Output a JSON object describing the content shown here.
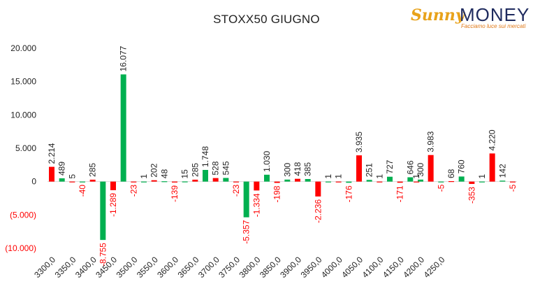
{
  "title": "STOXX50 GIUGNO",
  "logo": {
    "brand_a": "Sunny",
    "brand_b": "MONEY",
    "tagline": "Facciamo luce sui mercati",
    "color_a": "#e8a21a",
    "color_b": "#1e2a5e"
  },
  "colors": {
    "positive": "#00b050",
    "negative": "#ff0000"
  },
  "chart_data": {
    "type": "bar",
    "title": "STOXX50 GIUGNO",
    "xlabel": "",
    "ylabel": "",
    "ylim": [
      -10000,
      20000
    ],
    "yticks": [
      {
        "value": 20000,
        "label": "20.000"
      },
      {
        "value": 15000,
        "label": "15.000"
      },
      {
        "value": 10000,
        "label": "10.000"
      },
      {
        "value": 5000,
        "label": "5.000"
      },
      {
        "value": 0,
        "label": "0"
      },
      {
        "value": -5000,
        "label": "(5.000)"
      },
      {
        "value": -10000,
        "label": "(10.000)"
      }
    ],
    "xticks": [
      "3300,0",
      "3350,0",
      "3400,0",
      "3450,0",
      "3500,0",
      "3550,0",
      "3600,0",
      "3650,0",
      "3700,0",
      "3750,0",
      "3800,0",
      "3850,0",
      "3900,0",
      "3950,0",
      "4000,0",
      "4050,0",
      "4100,0",
      "4150,0",
      "4200,0",
      "4250,0"
    ],
    "bars": [
      {
        "strike": 3300,
        "value": 2214,
        "label": "2.214"
      },
      {
        "strike": 3325,
        "value": 489,
        "label": "489"
      },
      {
        "strike": 3350,
        "value": 5,
        "label": "5"
      },
      {
        "strike": 3375,
        "value": -40,
        "label": "-40"
      },
      {
        "strike": 3400,
        "value": 285,
        "label": "285"
      },
      {
        "strike": 3425,
        "value": -8755,
        "label": "-8.755"
      },
      {
        "strike": 3450,
        "value": -1289,
        "label": "-1.289"
      },
      {
        "strike": 3475,
        "value": 16077,
        "label": "16.077"
      },
      {
        "strike": 3500,
        "value": -23,
        "label": "-23"
      },
      {
        "strike": 3525,
        "value": 1,
        "label": "1"
      },
      {
        "strike": 3550,
        "value": 202,
        "label": "202"
      },
      {
        "strike": 3575,
        "value": 48,
        "label": "48"
      },
      {
        "strike": 3600,
        "value": -139,
        "label": "-139"
      },
      {
        "strike": 3625,
        "value": 15,
        "label": "15"
      },
      {
        "strike": 3650,
        "value": 285,
        "label": "285"
      },
      {
        "strike": 3675,
        "value": 1748,
        "label": "1.748"
      },
      {
        "strike": 3700,
        "value": 528,
        "label": "528"
      },
      {
        "strike": 3725,
        "value": 545,
        "label": "545"
      },
      {
        "strike": 3750,
        "value": -23,
        "label": "-23"
      },
      {
        "strike": 3775,
        "value": -5357,
        "label": "-5.357"
      },
      {
        "strike": 3800,
        "value": -1334,
        "label": "-1.334"
      },
      {
        "strike": 3825,
        "value": 1030,
        "label": "1.030"
      },
      {
        "strike": 3850,
        "value": -198,
        "label": "-198"
      },
      {
        "strike": 3875,
        "value": 300,
        "label": "300"
      },
      {
        "strike": 3900,
        "value": 418,
        "label": "418"
      },
      {
        "strike": 3925,
        "value": 385,
        "label": "385"
      },
      {
        "strike": 3950,
        "value": -2236,
        "label": "-2.236"
      },
      {
        "strike": 3975,
        "value": 1,
        "label": "1"
      },
      {
        "strike": 4000,
        "value": 1,
        "label": "1"
      },
      {
        "strike": 4025,
        "value": -176,
        "label": "-176"
      },
      {
        "strike": 4050,
        "value": 3935,
        "label": "3.935"
      },
      {
        "strike": 4075,
        "value": 251,
        "label": "251"
      },
      {
        "strike": 4100,
        "value": 1,
        "label": "1"
      },
      {
        "strike": 4125,
        "value": 727,
        "label": "727"
      },
      {
        "strike": 4150,
        "value": -171,
        "label": "-171"
      },
      {
        "strike": 4175,
        "value": 646,
        "label": "646"
      },
      {
        "strike": 4190,
        "value": 1,
        "label": "1"
      },
      {
        "strike": 4200,
        "value": 300,
        "label": "300"
      },
      {
        "strike": 4225,
        "value": 3983,
        "label": "3.983"
      },
      {
        "strike": 4250,
        "value": -5,
        "label": "-5"
      },
      {
        "strike": 4275,
        "value": 68,
        "label": "68"
      },
      {
        "strike": 4300,
        "value": 760,
        "label": "760"
      },
      {
        "strike": 4325,
        "value": -353,
        "label": "-353"
      },
      {
        "strike": 4350,
        "value": 1,
        "label": "1"
      },
      {
        "strike": 4375,
        "value": 4220,
        "label": "4.220"
      },
      {
        "strike": 4400,
        "value": 142,
        "label": "142"
      },
      {
        "strike": 4425,
        "value": -5,
        "label": "-5"
      }
    ],
    "grid": false,
    "legend": "none"
  }
}
